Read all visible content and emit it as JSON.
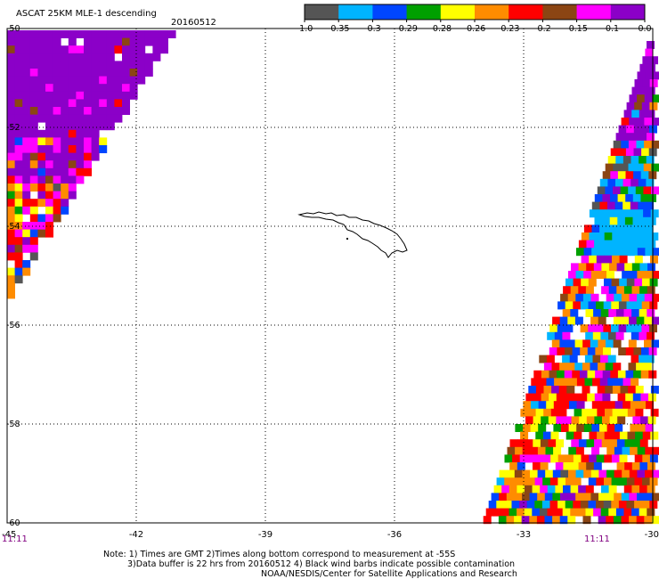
{
  "header": {
    "title": "ASCAT 25KM MLE-1 descending",
    "date": "20160512"
  },
  "colorbar": {
    "tick_labels": [
      "-1.0",
      "-0.35",
      "-0.3",
      "-0.29",
      "-0.28",
      "-0.26",
      "-0.23",
      "-0.2",
      "-0.15",
      "-0.1",
      "0.0"
    ],
    "colors": [
      "#555555",
      "#00b4ff",
      "#0046ff",
      "#00a000",
      "#ffff00",
      "#ff8c00",
      "#ff0000",
      "#8b4513",
      "#ff00ff",
      "#8b00c8"
    ]
  },
  "map": {
    "lat_labels": [
      "-50",
      "-52",
      "-54",
      "-56",
      "-58",
      "-60"
    ],
    "lon_labels": [
      "-45",
      "-42",
      "-39",
      "-36",
      "-33",
      "-30"
    ],
    "lon_range": [
      -45,
      -30
    ],
    "lat_range": [
      -50,
      -60
    ]
  },
  "times": {
    "left": "11:11",
    "right": "11:11"
  },
  "notes": {
    "line1": "Note: 1) Times are GMT 2)Times along bottom correspond to measurement at -55S",
    "line2": "3)Data buffer is 22 hrs from 20160512 4) Black wind barbs indicate possible contamination",
    "line3": "NOAA/NESDIS/Center for Satellite Applications and Research"
  }
}
